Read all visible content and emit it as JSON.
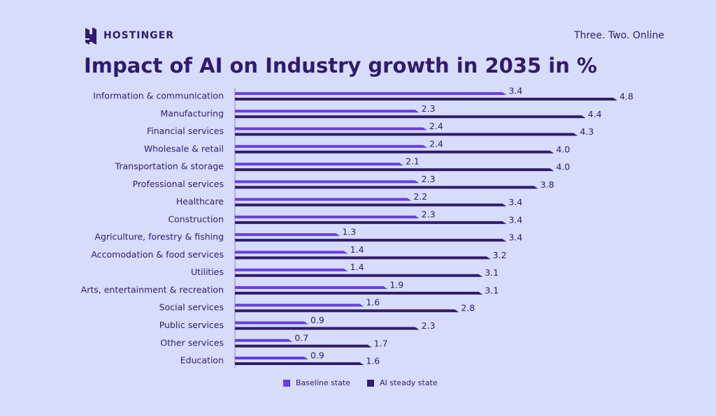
{
  "header": {
    "brand": "HOSTINGER",
    "tagline": "Three. Two. Online"
  },
  "chart_data": {
    "type": "barh",
    "title": "Impact of AI on Industry growth in 2035 in %",
    "categories": [
      "Information & communication",
      "Manufacturing",
      "Financial services",
      "Wholesale & retail",
      "Transportation & storage",
      "Professional services",
      "Healthcare",
      "Construction",
      "Agriculture, forestry & fishing",
      "Accomodation & food services",
      "Utilities",
      "Arts, entertainment & recreation",
      "Social services",
      "Public services",
      "Other services",
      "Education"
    ],
    "series": [
      {
        "name": "Baseline state",
        "color": "#673de6",
        "values": [
          3.4,
          2.3,
          2.4,
          2.4,
          2.1,
          2.3,
          2.2,
          2.3,
          1.3,
          1.4,
          1.4,
          1.9,
          1.6,
          0.9,
          0.7,
          0.9
        ],
        "value_labels": [
          "3.4",
          "2.3",
          "2.4",
          "2.4",
          "2.1",
          "2.3",
          "2.2",
          "2.3",
          "1.3",
          "1.4",
          "1.4",
          "1.9",
          "1.6",
          "0.9",
          "0.7",
          "0.9"
        ]
      },
      {
        "name": "AI steady state",
        "color": "#2f1c6a",
        "values": [
          4.8,
          4.4,
          4.3,
          4,
          4,
          3.8,
          3.4,
          3.4,
          3.4,
          3.2,
          3.1,
          3.1,
          2.8,
          2.3,
          1.7,
          1.6
        ],
        "value_labels": [
          "4.8",
          "4.4",
          "4.3",
          "4.0",
          "4.0",
          "3.8",
          "3.4",
          "3.4",
          "3.4",
          "3.2",
          "3.1",
          "3.1",
          "2.8",
          "2.3",
          "1.7",
          "1.6"
        ]
      }
    ]
  }
}
